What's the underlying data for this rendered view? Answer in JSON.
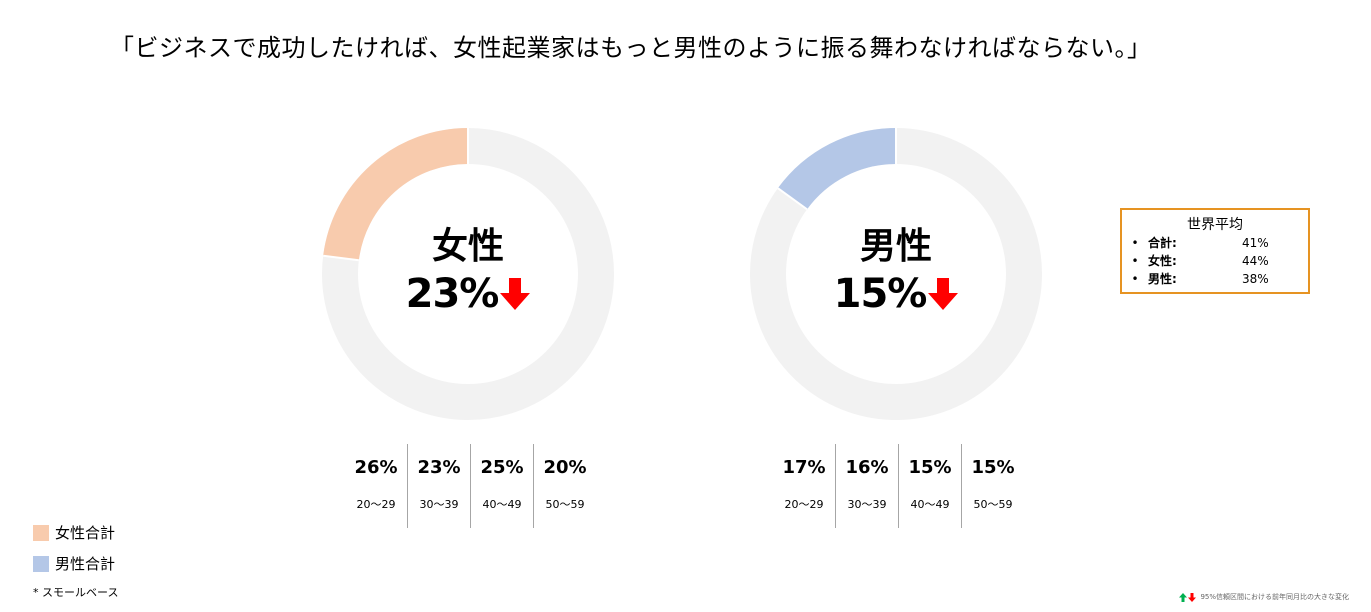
{
  "title": "「ビジネスで成功したければ、女性起業家はもっと男性のように振る舞わなければならない。」",
  "chart_data": [
    {
      "type": "pie",
      "center_label": "女性",
      "value": 23,
      "value_label": "23%",
      "trend": "down",
      "color": "#f8cbad",
      "track_color": "#f2f2f2",
      "age_breakdown": [
        {
          "range": "20～29",
          "value": "26%"
        },
        {
          "range": "30～39",
          "value": "23%"
        },
        {
          "range": "40～49",
          "value": "25%"
        },
        {
          "range": "50～59",
          "value": "20%"
        }
      ]
    },
    {
      "type": "pie",
      "center_label": "男性",
      "value": 15,
      "value_label": "15%",
      "trend": "down",
      "color": "#b4c7e7",
      "track_color": "#f2f2f2",
      "age_breakdown": [
        {
          "range": "20～29",
          "value": "17%"
        },
        {
          "range": "30～39",
          "value": "16%"
        },
        {
          "range": "40～49",
          "value": "15%"
        },
        {
          "range": "50～59",
          "value": "15%"
        }
      ]
    }
  ],
  "world_average": {
    "heading": "世界平均",
    "rows": [
      {
        "label": "合計:",
        "value": "41%"
      },
      {
        "label": "女性:",
        "value": "44%"
      },
      {
        "label": "男性:",
        "value": "38%"
      }
    ],
    "border_color": "#e69322"
  },
  "legend": [
    {
      "label": "女性合計",
      "color": "#f8cbad"
    },
    {
      "label": "男性合計",
      "color": "#b4c7e7"
    }
  ],
  "note": "* スモールベース",
  "footnote": "95%信頼区間における前年同月比の大きな変化",
  "colors": {
    "up_arrow": "#00b050",
    "down_arrow": "#ff0000"
  }
}
